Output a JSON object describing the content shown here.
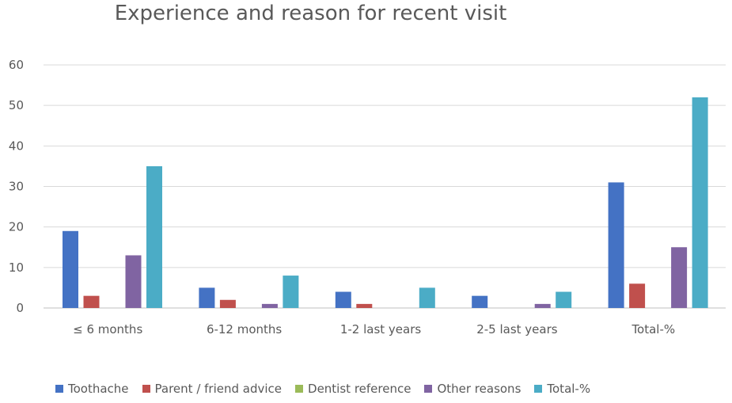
{
  "chart_data": {
    "type": "bar",
    "title": "Experience and reason for recent visit",
    "categories": [
      "≤ 6 months",
      "6-12 months",
      "1-2 last years",
      "2-5 last years",
      "Total-%"
    ],
    "series": [
      {
        "name": "Toothache",
        "color": "#4472C4",
        "values": [
          19,
          5,
          4,
          3,
          31
        ]
      },
      {
        "name": "Parent / friend advice",
        "color": "#C0504D",
        "values": [
          3,
          2,
          1,
          0,
          6
        ]
      },
      {
        "name": "Dentist reference",
        "color": "#9BBB59",
        "values": [
          0,
          0,
          0,
          0,
          0
        ]
      },
      {
        "name": "Other reasons",
        "color": "#8064A2",
        "values": [
          13,
          1,
          0,
          1,
          15
        ]
      },
      {
        "name": "Total-%",
        "color": "#4BACC6",
        "values": [
          35,
          8,
          5,
          4,
          52
        ]
      }
    ],
    "ylim": [
      0,
      60
    ],
    "yticks": [
      0,
      10,
      20,
      30,
      40,
      50,
      60
    ],
    "grid": true,
    "legend_position": "bottom"
  }
}
